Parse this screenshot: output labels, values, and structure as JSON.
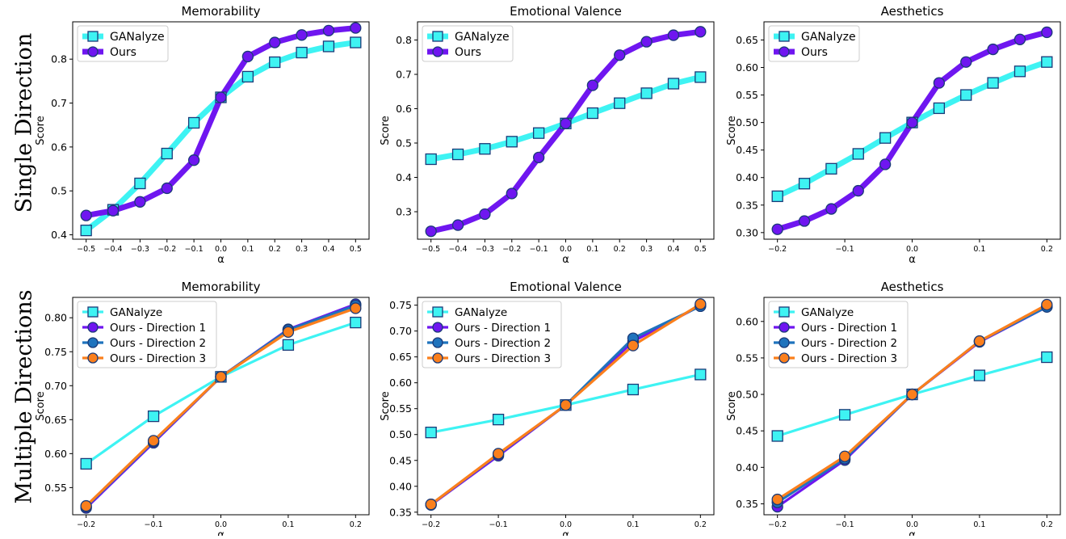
{
  "row_labels": [
    "Single Direction",
    "Multiple Directions"
  ],
  "chart_data": [
    {
      "type": "line",
      "title": "Memorability",
      "xlabel": "α",
      "ylabel": "Score",
      "x": [
        -0.5,
        -0.4,
        -0.3,
        -0.2,
        -0.1,
        0.0,
        0.1,
        0.2,
        0.3,
        0.4,
        0.5
      ],
      "xticks": [
        "−0.5",
        "−0.4",
        "−0.3",
        "−0.2",
        "−0.1",
        "0.0",
        "0.1",
        "0.2",
        "0.3",
        "0.4",
        "0.5"
      ],
      "xlim": [
        -0.55,
        0.55
      ],
      "ylim": [
        0.39,
        0.885
      ],
      "yticks": [
        "0.4",
        "0.5",
        "0.6",
        "0.7",
        "0.8"
      ],
      "legend": "top-left",
      "grid": false,
      "series": [
        {
          "name": "GANalyze",
          "color": "#3ef3f3",
          "marker": "square",
          "values": [
            0.41,
            0.457,
            0.517,
            0.585,
            0.655,
            0.713,
            0.76,
            0.793,
            0.815,
            0.829,
            0.838
          ]
        },
        {
          "name": "Ours",
          "color": "#6f16f0",
          "marker": "circle",
          "values": [
            0.444,
            0.455,
            0.475,
            0.506,
            0.57,
            0.713,
            0.806,
            0.838,
            0.855,
            0.865,
            0.871
          ]
        }
      ]
    },
    {
      "type": "line",
      "title": "Emotional Valence",
      "xlabel": "α",
      "ylabel": "Score",
      "x": [
        -0.5,
        -0.4,
        -0.3,
        -0.2,
        -0.1,
        0.0,
        0.1,
        0.2,
        0.3,
        0.4,
        0.5
      ],
      "xticks": [
        "−0.5",
        "−0.4",
        "−0.3",
        "−0.2",
        "−0.1",
        "0.0",
        "0.1",
        "0.2",
        "0.3",
        "0.4",
        "0.5"
      ],
      "xlim": [
        -0.55,
        0.55
      ],
      "ylim": [
        0.22,
        0.853
      ],
      "yticks": [
        "0.3",
        "0.4",
        "0.5",
        "0.6",
        "0.7",
        "0.8"
      ],
      "legend": "top-left",
      "grid": false,
      "series": [
        {
          "name": "GANalyze",
          "color": "#3ef3f3",
          "marker": "square",
          "values": [
            0.453,
            0.467,
            0.483,
            0.504,
            0.529,
            0.557,
            0.587,
            0.616,
            0.645,
            0.673,
            0.692
          ]
        },
        {
          "name": "Ours",
          "color": "#6f16f0",
          "marker": "circle",
          "values": [
            0.243,
            0.261,
            0.293,
            0.353,
            0.458,
            0.557,
            0.668,
            0.756,
            0.795,
            0.814,
            0.824
          ]
        }
      ]
    },
    {
      "type": "line",
      "title": "Aesthetics",
      "xlabel": "α",
      "ylabel": "Score",
      "x": [
        -0.2,
        -0.16,
        -0.12,
        -0.08,
        -0.04,
        0.0,
        0.04,
        0.08,
        0.12,
        0.16,
        0.2
      ],
      "xticks": [
        "−0.2",
        "−0.1",
        "0.0",
        "0.1",
        "0.2"
      ],
      "xtick_values": [
        -0.2,
        -0.1,
        0.0,
        0.1,
        0.2
      ],
      "xlim": [
        -0.22,
        0.22
      ],
      "ylim": [
        0.288,
        0.683
      ],
      "yticks": [
        "0.30",
        "0.35",
        "0.40",
        "0.45",
        "0.50",
        "0.55",
        "0.60",
        "0.65"
      ],
      "legend": "top-left",
      "grid": false,
      "series": [
        {
          "name": "GANalyze",
          "color": "#3ef3f3",
          "marker": "square",
          "values": [
            0.366,
            0.389,
            0.416,
            0.443,
            0.472,
            0.5,
            0.526,
            0.55,
            0.572,
            0.593,
            0.61
          ]
        },
        {
          "name": "Ours",
          "color": "#6f16f0",
          "marker": "circle",
          "values": [
            0.306,
            0.321,
            0.343,
            0.376,
            0.424,
            0.5,
            0.572,
            0.61,
            0.633,
            0.651,
            0.664
          ]
        }
      ]
    },
    {
      "type": "line",
      "title": "Memorability",
      "xlabel": "α",
      "ylabel": "Score",
      "x": [
        -0.2,
        -0.1,
        0.0,
        0.1,
        0.2
      ],
      "xticks": [
        "−0.2",
        "−0.1",
        "0.0",
        "0.1",
        "0.2"
      ],
      "xlim": [
        -0.22,
        0.22
      ],
      "ylim": [
        0.51,
        0.83
      ],
      "yticks": [
        "0.55",
        "0.60",
        "0.65",
        "0.70",
        "0.75",
        "0.80"
      ],
      "legend": "top-left",
      "grid": false,
      "series": [
        {
          "name": "GANalyze",
          "color": "#3ef3f3",
          "marker": "square",
          "values": [
            0.585,
            0.655,
            0.713,
            0.76,
            0.793
          ]
        },
        {
          "name": "Ours - Direction 1",
          "color": "#6f16f0",
          "marker": "circle",
          "values": [
            0.52,
            0.616,
            0.713,
            0.783,
            0.82
          ]
        },
        {
          "name": "Ours - Direction 2",
          "color": "#1f73bd",
          "marker": "circle",
          "values": [
            0.522,
            0.618,
            0.713,
            0.782,
            0.818
          ]
        },
        {
          "name": "Ours - Direction 3",
          "color": "#fb7f1c",
          "marker": "circle",
          "values": [
            0.523,
            0.619,
            0.713,
            0.779,
            0.814
          ]
        }
      ]
    },
    {
      "type": "line",
      "title": "Emotional Valence",
      "xlabel": "α",
      "ylabel": "Score",
      "x": [
        -0.2,
        -0.1,
        0.0,
        0.1,
        0.2
      ],
      "xticks": [
        "−0.2",
        "−0.1",
        "0.0",
        "0.1",
        "0.2"
      ],
      "xlim": [
        -0.22,
        0.22
      ],
      "ylim": [
        0.345,
        0.765
      ],
      "yticks": [
        "0.35",
        "0.40",
        "0.45",
        "0.50",
        "0.55",
        "0.60",
        "0.65",
        "0.70",
        "0.75"
      ],
      "legend": "top-left",
      "grid": false,
      "series": [
        {
          "name": "GANalyze",
          "color": "#3ef3f3",
          "marker": "square",
          "values": [
            0.504,
            0.529,
            0.557,
            0.587,
            0.616
          ]
        },
        {
          "name": "Ours - Direction 1",
          "color": "#6f16f0",
          "marker": "circle",
          "values": [
            0.364,
            0.459,
            0.557,
            0.68,
            0.749
          ]
        },
        {
          "name": "Ours - Direction 2",
          "color": "#1f73bd",
          "marker": "circle",
          "values": [
            0.365,
            0.462,
            0.557,
            0.686,
            0.748
          ]
        },
        {
          "name": "Ours - Direction 3",
          "color": "#fb7f1c",
          "marker": "circle",
          "values": [
            0.365,
            0.463,
            0.557,
            0.672,
            0.752
          ]
        }
      ]
    },
    {
      "type": "line",
      "title": "Aesthetics",
      "xlabel": "α",
      "ylabel": "Score",
      "x": [
        -0.2,
        -0.1,
        0.0,
        0.1,
        0.2
      ],
      "xticks": [
        "−0.2",
        "−0.1",
        "0.0",
        "0.1",
        "0.2"
      ],
      "xlim": [
        -0.22,
        0.22
      ],
      "ylim": [
        0.335,
        0.633
      ],
      "yticks": [
        "0.35",
        "0.40",
        "0.45",
        "0.50",
        "0.55",
        "0.60"
      ],
      "legend": "top-left",
      "grid": false,
      "series": [
        {
          "name": "GANalyze",
          "color": "#3ef3f3",
          "marker": "square",
          "values": [
            0.443,
            0.472,
            0.5,
            0.526,
            0.551
          ]
        },
        {
          "name": "Ours - Direction 1",
          "color": "#6f16f0",
          "marker": "circle",
          "values": [
            0.346,
            0.41,
            0.5,
            0.572,
            0.62
          ]
        },
        {
          "name": "Ours - Direction 2",
          "color": "#1f73bd",
          "marker": "circle",
          "values": [
            0.352,
            0.412,
            0.5,
            0.573,
            0.62
          ]
        },
        {
          "name": "Ours - Direction 3",
          "color": "#fb7f1c",
          "marker": "circle",
          "values": [
            0.356,
            0.415,
            0.5,
            0.573,
            0.623
          ]
        }
      ]
    }
  ]
}
